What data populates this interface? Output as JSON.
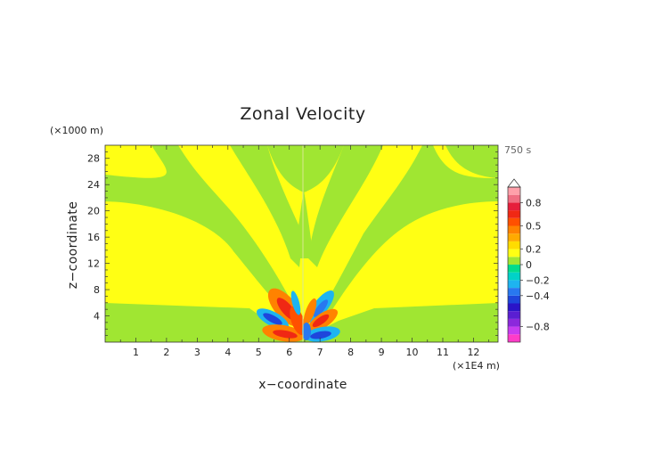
{
  "chart_data": {
    "type": "heatmap",
    "title": "Zonal Velocity",
    "xlabel": "x−coordinate",
    "ylabel": "z−coordinate",
    "x_unit": "(×1E4 m)",
    "y_unit": "(×1000 m)",
    "time_label": "750 s",
    "xlim": [
      0,
      12.8
    ],
    "ylim": [
      0,
      30
    ],
    "x_ticks": [
      "1",
      "2",
      "3",
      "4",
      "5",
      "6",
      "7",
      "8",
      "9",
      "10",
      "11",
      "12"
    ],
    "y_ticks": [
      "4",
      "8",
      "12",
      "16",
      "20",
      "24",
      "28"
    ],
    "colorbar": {
      "levels": [
        -1.0,
        -0.9,
        -0.8,
        -0.7,
        -0.6,
        -0.5,
        -0.4,
        -0.3,
        -0.2,
        -0.1,
        0,
        0.1,
        0.2,
        0.3,
        0.4,
        0.5,
        0.6,
        0.7,
        0.8,
        0.9,
        1.0
      ],
      "tick_labels": [
        "0.8",
        "0.5",
        "0.2",
        "0",
        "−0.2",
        "−0.4",
        "−0.8"
      ],
      "tick_values": [
        0.8,
        0.5,
        0.2,
        0,
        -0.2,
        -0.4,
        -0.8
      ],
      "colors": [
        "#ff3cc8",
        "#c83cf0",
        "#8c28dc",
        "#5a1ed2",
        "#2a14c8",
        "#1e46dc",
        "#2878f0",
        "#1eb4f0",
        "#00d2c8",
        "#00dc8c",
        "#a0e632",
        "#ffff14",
        "#ffdc00",
        "#ffaa00",
        "#ff8200",
        "#ff5000",
        "#f02814",
        "#e61e3c",
        "#f06e82",
        "#ffa0aa"
      ],
      "upper_extension_color": "#ffffff"
    },
    "regions": [
      {
        "value": 0.05,
        "x": [
          0,
          12.8
        ],
        "z": [
          0,
          30
        ]
      },
      {
        "value": -0.05,
        "description_value_range": "near 0"
      },
      {
        "value": 0.4,
        "x": [
          5.5,
          6.4
        ],
        "z": [
          0,
          3.5
        ]
      },
      {
        "value": -0.4,
        "x": [
          5.0,
          5.9
        ],
        "z": [
          2,
          3.5
        ]
      },
      {
        "value": 0.5,
        "x": [
          5.3,
          6.2
        ],
        "z": [
          3.5,
          7
        ]
      },
      {
        "value": -0.3,
        "x": [
          6.1,
          7.3
        ],
        "z": [
          0,
          2
        ]
      },
      {
        "value": 0.4,
        "x": [
          6.5,
          7.5
        ],
        "z": [
          2.5,
          4.5
        ]
      },
      {
        "value": -0.3,
        "x": [
          6.8,
          7.6
        ],
        "z": [
          5,
          7.5
        ]
      }
    ]
  }
}
